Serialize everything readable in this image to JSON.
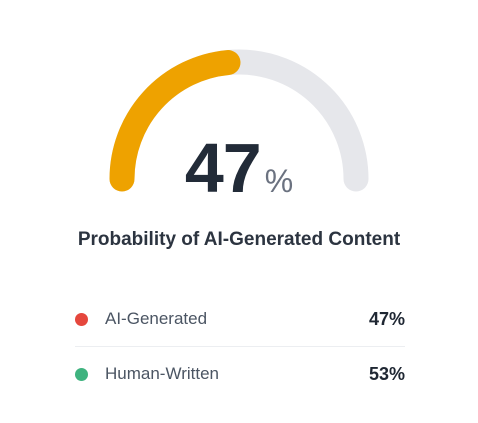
{
  "gauge": {
    "value": 47,
    "value_text": "47",
    "unit": "%",
    "fill_fraction": 0.47,
    "colors": {
      "fill": "#eea200",
      "track": "#e6e7eb"
    }
  },
  "title": "Probability of AI-Generated Content",
  "legend": [
    {
      "label": "AI-Generated",
      "value": "47%",
      "color": "#e5473d"
    },
    {
      "label": "Human-Written",
      "value": "53%",
      "color": "#3fb37f"
    }
  ]
}
